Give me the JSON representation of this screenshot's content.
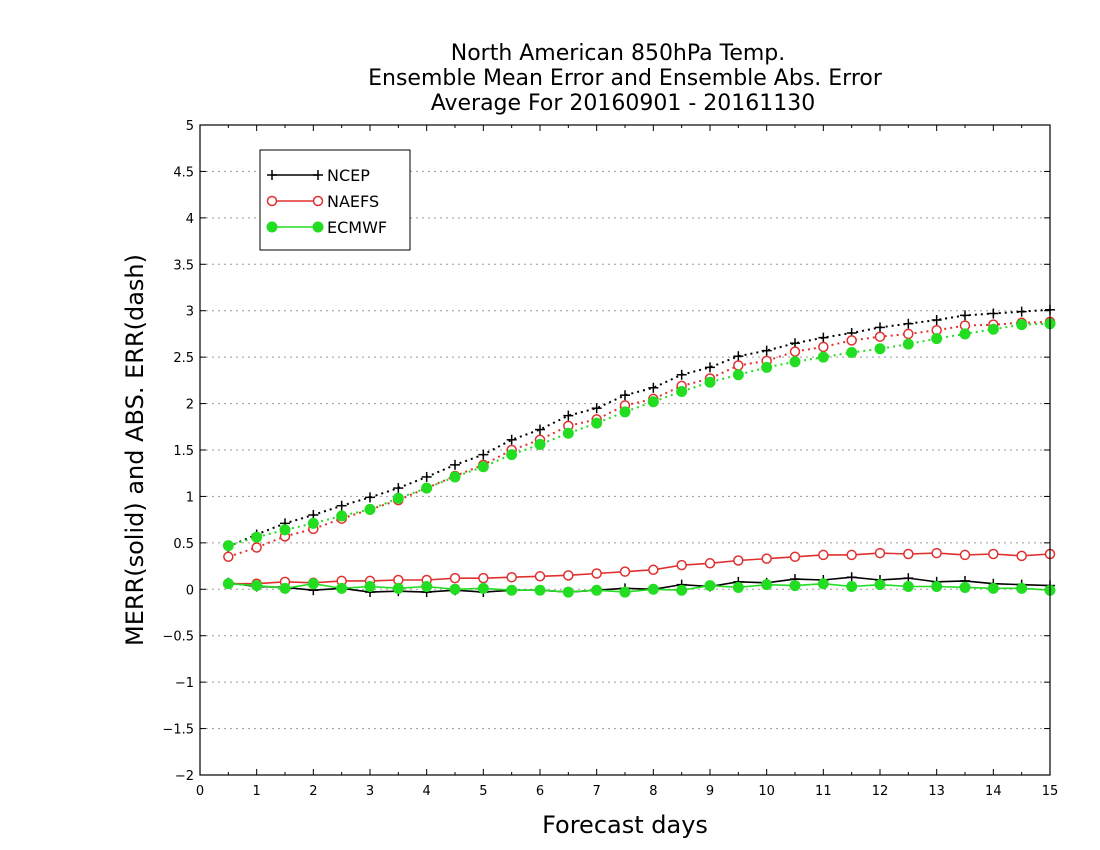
{
  "chart_data": {
    "type": "line",
    "title": [
      "North American 850hPa Temp.",
      "Ensemble Mean Error and Ensemble Abs. Error",
      "Average For 20160901 - 20161130"
    ],
    "xlabel": "Forecast days",
    "ylabel": "MERR(solid) and ABS. ERR(dash)",
    "xlim": [
      0,
      15
    ],
    "ylim": [
      -2,
      5
    ],
    "xticks": [
      0,
      1,
      2,
      3,
      4,
      5,
      6,
      7,
      8,
      9,
      10,
      11,
      12,
      13,
      14,
      15
    ],
    "yticks": [
      -2,
      -1.5,
      -1,
      -0.5,
      0,
      0.5,
      1,
      1.5,
      2,
      2.5,
      3,
      3.5,
      4,
      4.5,
      5
    ],
    "ytick_labels": [
      "−2",
      "−1.5",
      "−1",
      "−0.5",
      "0",
      "0.5",
      "1",
      "1.5",
      "2",
      "2.5",
      "3",
      "3.5",
      "4",
      "4.5",
      "5"
    ],
    "grid": "horizontal dotted",
    "legend_position": "top-left",
    "x": [
      0.5,
      1,
      1.5,
      2,
      2.5,
      3,
      3.5,
      4,
      4.5,
      5,
      5.5,
      6,
      6.5,
      7,
      7.5,
      8,
      8.5,
      9,
      9.5,
      10,
      10.5,
      11,
      11.5,
      12,
      12.5,
      13,
      13.5,
      14,
      14.5,
      15
    ],
    "series": [
      {
        "name": "NCEP",
        "color": "#000000",
        "marker": "plus",
        "abs_err": [
          0.46,
          0.59,
          0.71,
          0.8,
          0.9,
          0.99,
          1.09,
          1.21,
          1.34,
          1.45,
          1.61,
          1.72,
          1.87,
          1.95,
          2.09,
          2.17,
          2.31,
          2.39,
          2.51,
          2.57,
          2.65,
          2.71,
          2.76,
          2.82,
          2.86,
          2.9,
          2.95,
          2.97,
          2.99,
          3.01
        ],
        "mean_err": [
          0.07,
          0.03,
          0.02,
          -0.01,
          0.01,
          -0.03,
          -0.02,
          -0.03,
          -0.01,
          -0.03,
          -0.01,
          -0.01,
          -0.03,
          -0.01,
          0.01,
          0.0,
          0.05,
          0.03,
          0.08,
          0.07,
          0.11,
          0.1,
          0.13,
          0.1,
          0.12,
          0.08,
          0.09,
          0.06,
          0.05,
          0.04
        ]
      },
      {
        "name": "NAEFS",
        "color": "#e03030",
        "marker": "open-circle",
        "abs_err": [
          0.35,
          0.45,
          0.57,
          0.65,
          0.76,
          0.86,
          0.96,
          1.09,
          1.22,
          1.34,
          1.5,
          1.61,
          1.76,
          1.83,
          1.98,
          2.05,
          2.19,
          2.27,
          2.41,
          2.46,
          2.56,
          2.61,
          2.68,
          2.72,
          2.75,
          2.79,
          2.84,
          2.85,
          2.87,
          2.88
        ],
        "mean_err": [
          0.06,
          0.06,
          0.08,
          0.07,
          0.09,
          0.09,
          0.1,
          0.1,
          0.12,
          0.12,
          0.13,
          0.14,
          0.15,
          0.17,
          0.19,
          0.21,
          0.26,
          0.28,
          0.31,
          0.33,
          0.35,
          0.37,
          0.37,
          0.39,
          0.38,
          0.39,
          0.37,
          0.38,
          0.36,
          0.38
        ]
      },
      {
        "name": "ECMWF",
        "color": "#22dd22",
        "marker": "filled-circle",
        "abs_err": [
          0.47,
          0.56,
          0.64,
          0.71,
          0.79,
          0.86,
          0.98,
          1.09,
          1.21,
          1.32,
          1.45,
          1.56,
          1.68,
          1.79,
          1.91,
          2.02,
          2.13,
          2.23,
          2.31,
          2.39,
          2.45,
          2.5,
          2.55,
          2.59,
          2.64,
          2.7,
          2.75,
          2.8,
          2.85,
          2.86
        ],
        "mean_err": [
          0.06,
          0.04,
          0.01,
          0.06,
          0.01,
          0.03,
          0.01,
          0.03,
          0.0,
          0.01,
          -0.01,
          -0.01,
          -0.03,
          -0.01,
          -0.03,
          0.0,
          -0.01,
          0.04,
          0.02,
          0.05,
          0.04,
          0.06,
          0.03,
          0.05,
          0.03,
          0.03,
          0.02,
          0.01,
          0.01,
          -0.01
        ]
      }
    ]
  }
}
